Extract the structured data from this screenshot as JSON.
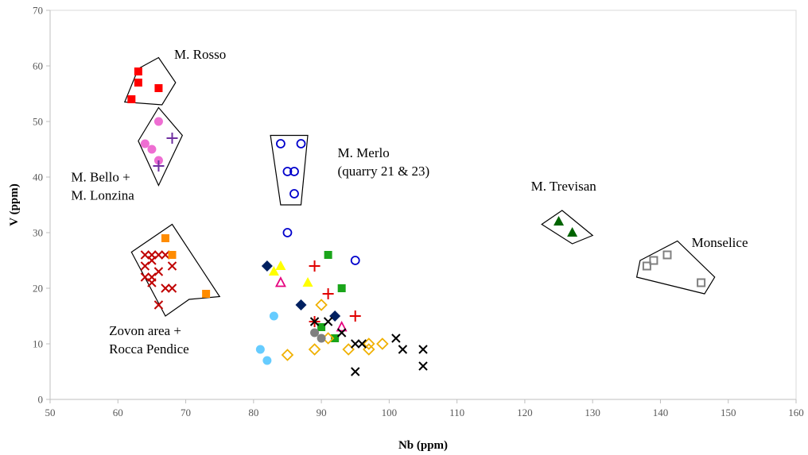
{
  "chart_data": {
    "type": "scatter",
    "xlabel": "Nb (ppm)",
    "ylabel": "V (ppm)",
    "xlim": [
      50,
      160
    ],
    "ylim": [
      0,
      70
    ],
    "xticks": [
      50,
      60,
      70,
      80,
      90,
      100,
      110,
      120,
      130,
      140,
      150,
      160
    ],
    "yticks": [
      0,
      10,
      20,
      30,
      40,
      50,
      60,
      70
    ],
    "xtick_labels": [
      "50",
      "60",
      "70",
      "80",
      "90",
      "100",
      "110",
      "120",
      "130",
      "140",
      "150",
      "160"
    ],
    "ytick_labels": [
      "0",
      "10",
      "20",
      "30",
      "40",
      "50",
      "60",
      "70"
    ],
    "grid": false,
    "series": [
      {
        "marker": "square",
        "color": "#ff0000",
        "points": [
          [
            62,
            54
          ],
          [
            63,
            57
          ],
          [
            63,
            59
          ],
          [
            66,
            56
          ]
        ]
      },
      {
        "marker": "circle",
        "color": "#ee6ed2",
        "points": [
          [
            64,
            46
          ],
          [
            65,
            45
          ],
          [
            66,
            43
          ],
          [
            66,
            50
          ]
        ]
      },
      {
        "marker": "plus",
        "color": "#7030a0",
        "points": [
          [
            66,
            42
          ],
          [
            68,
            47
          ]
        ]
      },
      {
        "marker": "open-circle",
        "color": "#0000cc",
        "points": [
          [
            84,
            46
          ],
          [
            85,
            41
          ],
          [
            86,
            41
          ],
          [
            86,
            37
          ],
          [
            87,
            46
          ],
          [
            85,
            30
          ],
          [
            95,
            25
          ]
        ]
      },
      {
        "marker": "triangle",
        "color": "#006400",
        "points": [
          [
            125,
            32
          ],
          [
            127,
            30
          ]
        ]
      },
      {
        "marker": "open-square",
        "color": "#808080",
        "points": [
          [
            138,
            24
          ],
          [
            139,
            25
          ],
          [
            141,
            26
          ],
          [
            146,
            21
          ]
        ]
      },
      {
        "marker": "x",
        "color": "#c00000",
        "points": [
          [
            64,
            26
          ],
          [
            65,
            26
          ],
          [
            66,
            26
          ],
          [
            67,
            26
          ],
          [
            64,
            24
          ],
          [
            65,
            25
          ],
          [
            68,
            24
          ],
          [
            64,
            22
          ],
          [
            65,
            22
          ],
          [
            66,
            23
          ],
          [
            65,
            21
          ],
          [
            67,
            20
          ],
          [
            68,
            20
          ],
          [
            66,
            17
          ]
        ]
      },
      {
        "marker": "square",
        "color": "#ff8c00",
        "points": [
          [
            67,
            29
          ],
          [
            68,
            26
          ],
          [
            73,
            19
          ]
        ]
      },
      {
        "marker": "diamond",
        "color": "#002060",
        "points": [
          [
            82,
            24
          ],
          [
            87,
            17
          ],
          [
            92,
            15
          ]
        ]
      },
      {
        "marker": "triangle",
        "color": "#ffff00",
        "points": [
          [
            83,
            23
          ],
          [
            84,
            24
          ],
          [
            88,
            21
          ]
        ]
      },
      {
        "marker": "open-triangle",
        "color": "#e6007e",
        "points": [
          [
            84,
            21
          ],
          [
            93,
            13
          ]
        ]
      },
      {
        "marker": "square",
        "color": "#1aa51a",
        "points": [
          [
            91,
            26
          ],
          [
            93,
            20
          ],
          [
            90,
            13
          ],
          [
            92,
            11
          ]
        ]
      },
      {
        "marker": "plus",
        "color": "#e00000",
        "points": [
          [
            89,
            24
          ],
          [
            91,
            19
          ],
          [
            95,
            15
          ],
          [
            89,
            14
          ]
        ]
      },
      {
        "marker": "circle",
        "color": "#66ccff",
        "points": [
          [
            83,
            15
          ],
          [
            81,
            9
          ],
          [
            82,
            7
          ]
        ]
      },
      {
        "marker": "open-diamond",
        "color": "#f0b000",
        "points": [
          [
            85,
            8
          ],
          [
            89,
            9
          ],
          [
            90,
            17
          ],
          [
            91,
            11
          ],
          [
            94,
            9
          ],
          [
            97,
            9
          ],
          [
            97,
            10
          ],
          [
            99,
            10
          ]
        ]
      },
      {
        "marker": "circle",
        "color": "#808080",
        "points": [
          [
            89,
            12
          ],
          [
            90,
            11
          ]
        ]
      },
      {
        "marker": "x",
        "color": "#000000",
        "points": [
          [
            89,
            14
          ],
          [
            91,
            14
          ],
          [
            93,
            12
          ],
          [
            95,
            10
          ],
          [
            96,
            10
          ],
          [
            101,
            11
          ],
          [
            102,
            9
          ],
          [
            105,
            9
          ],
          [
            105,
            6
          ],
          [
            95,
            5
          ]
        ]
      }
    ],
    "annotations": [
      {
        "lines": [
          "M. Rosso"
        ],
        "x": 68.3,
        "y": 61.3
      },
      {
        "lines": [
          "M. Merlo",
          "(quarry 21 & 23)"
        ],
        "x": 92.4,
        "y": 43.6
      },
      {
        "lines": [
          "M. Bello +",
          "M. Lonzina"
        ],
        "x": 53.1,
        "y": 39.2
      },
      {
        "lines": [
          "M. Trevisan"
        ],
        "x": 120.9,
        "y": 37.6
      },
      {
        "lines": [
          "Monselice"
        ],
        "x": 144.6,
        "y": 27.4
      },
      {
        "lines": [
          "Zovon area +",
          "Rocca Pendice"
        ],
        "x": 58.7,
        "y": 11.6
      }
    ],
    "group_outlines": [
      [
        [
          63,
          59.5
        ],
        [
          66,
          61.5
        ],
        [
          68.5,
          57
        ],
        [
          66.5,
          53
        ],
        [
          61,
          53.5
        ]
      ],
      [
        [
          63,
          46.5
        ],
        [
          66,
          52.5
        ],
        [
          69.5,
          47.5
        ],
        [
          66,
          38.5
        ]
      ],
      [
        [
          82.5,
          47.5
        ],
        [
          88,
          47.5
        ],
        [
          87,
          35
        ],
        [
          84,
          35
        ]
      ],
      [
        [
          122.5,
          31.5
        ],
        [
          125.5,
          34
        ],
        [
          130,
          29.5
        ],
        [
          127,
          28
        ]
      ],
      [
        [
          137,
          25
        ],
        [
          142.5,
          28.5
        ],
        [
          148,
          22
        ],
        [
          146.5,
          19
        ],
        [
          136.5,
          22
        ]
      ],
      [
        [
          62,
          26.5
        ],
        [
          68,
          31.5
        ],
        [
          75,
          18.5
        ],
        [
          70.5,
          18
        ],
        [
          67,
          15
        ]
      ]
    ]
  }
}
